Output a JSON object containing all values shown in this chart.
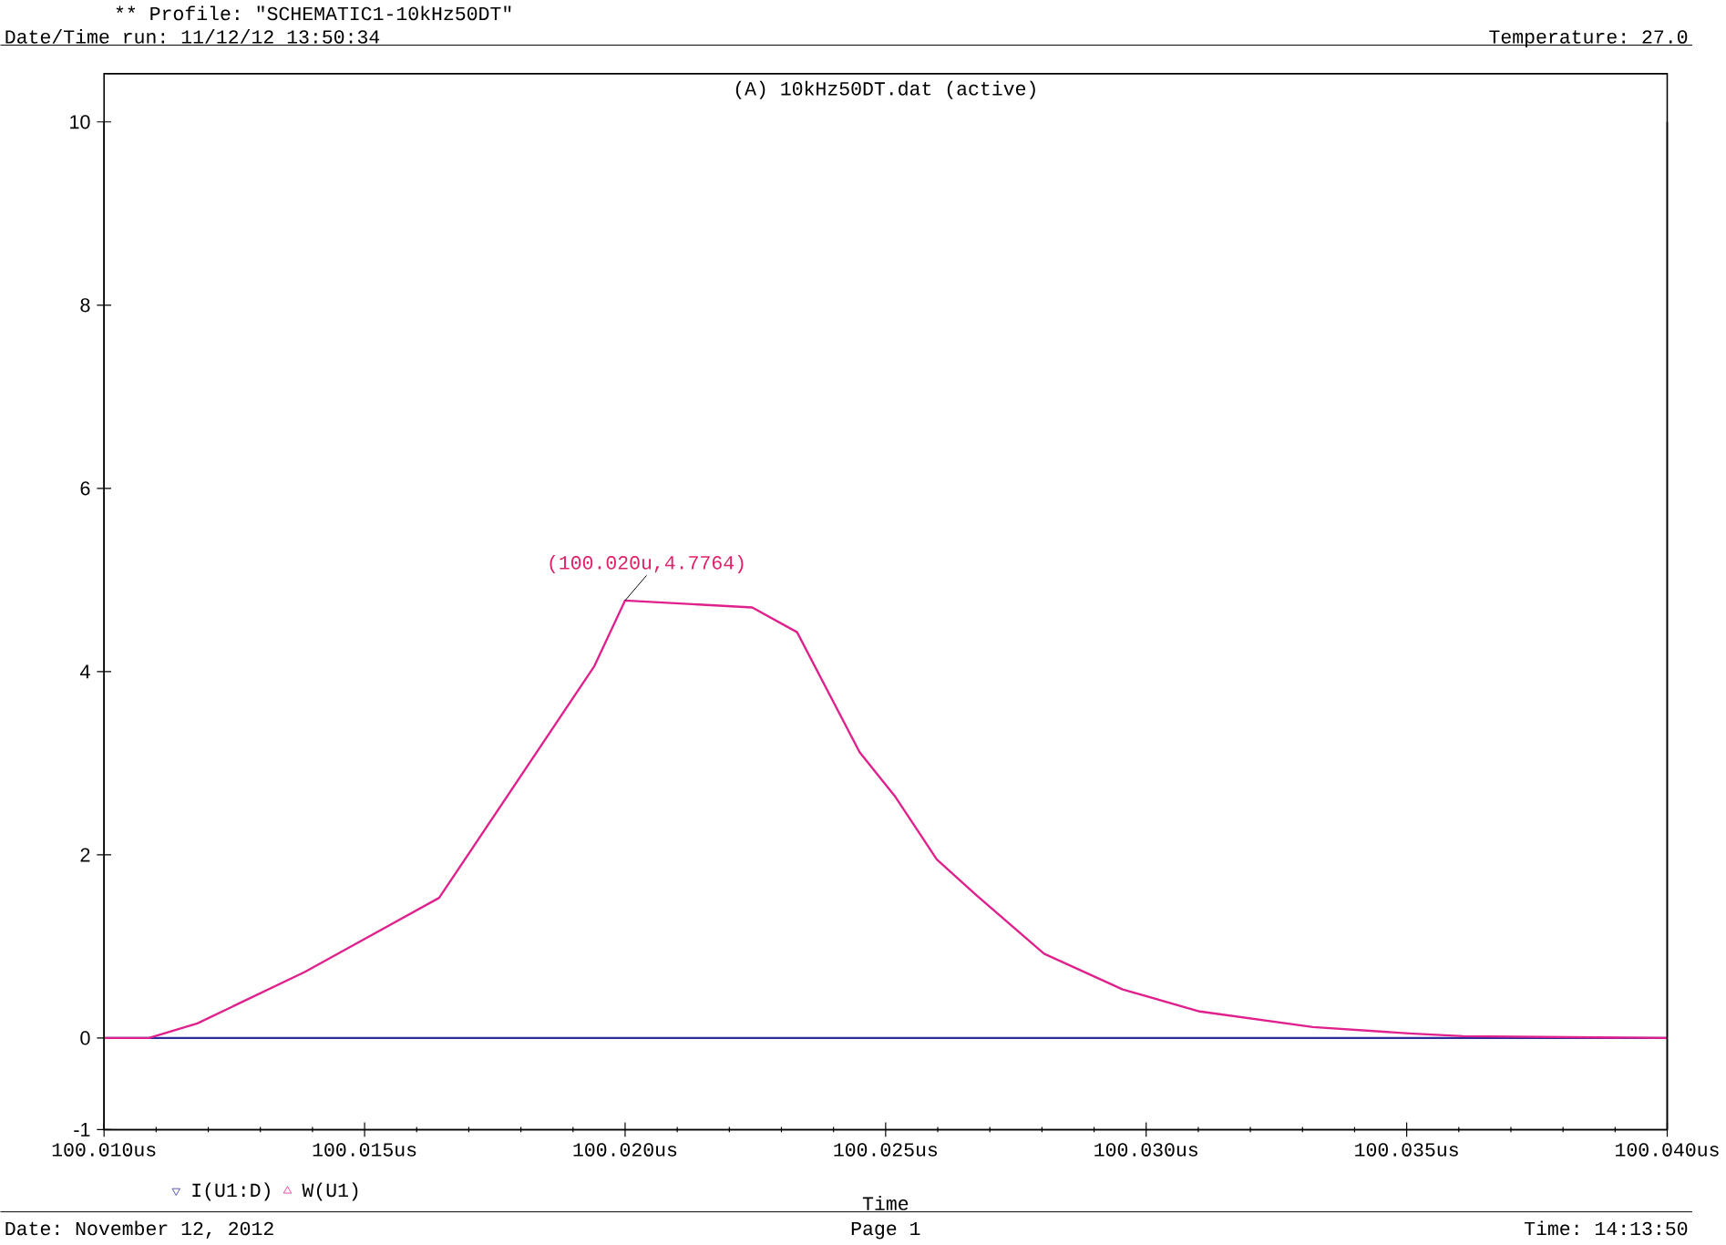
{
  "chart_data": {
    "type": "line",
    "title": "(A) 10kHz50DT.dat (active)",
    "subtitle": "** Profile: \"SCHEMATIC1-10kHz50DT\"",
    "xlabel": "Time",
    "annotations": [
      {
        "text": "(100.020u,4.7764)",
        "x": 100.02,
        "y": 4.7764
      },
      "Date/Time run: 11/12/12 13:50:34",
      "Temperature: 27.0",
      "Date: November 12, 2012",
      "Page 1",
      "Time: 14:13:50"
    ],
    "xlim": [
      100.01,
      100.04
    ],
    "xticks": [
      {
        "value": 100.01,
        "label": "100.010us"
      },
      {
        "value": 100.015,
        "label": "100.015us"
      },
      {
        "value": 100.02,
        "label": "100.020us"
      },
      {
        "value": 100.025,
        "label": "100.025us"
      },
      {
        "value": 100.03,
        "label": "100.030us"
      },
      {
        "value": 100.035,
        "label": "100.035us"
      },
      {
        "value": 100.04,
        "label": "100.040us"
      }
    ],
    "ylim": [
      -1,
      10
    ],
    "yticks": [
      -1,
      0,
      2,
      4,
      6,
      8,
      10
    ],
    "grid": false,
    "legend": "bottom left",
    "series": [
      {
        "name": "I(U1:D)",
        "color": "#2c2c9c",
        "x": [
          100.01,
          100.04
        ],
        "values": [
          0,
          0
        ]
      },
      {
        "name": "W(U1)",
        "color": "#e0208c",
        "x": [
          100.01,
          100.01086,
          100.01179,
          100.01385,
          100.01643,
          100.01941,
          100.02,
          100.02244,
          100.0233,
          100.0245,
          100.02519,
          100.02598,
          100.02674,
          100.02804,
          100.02955,
          100.03103,
          100.0332,
          100.03505,
          100.03608,
          100.04
        ],
        "values": [
          0,
          0,
          0.16,
          0.72,
          1.53,
          4.06,
          4.7764,
          4.7,
          4.43,
          3.12,
          2.63,
          1.95,
          1.56,
          0.92,
          0.53,
          0.29,
          0.12,
          0.05,
          0.02,
          0
        ]
      }
    ]
  }
}
